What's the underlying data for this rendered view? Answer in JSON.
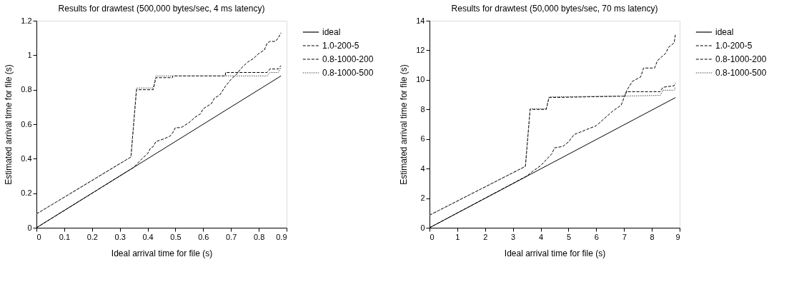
{
  "chart_data": [
    {
      "type": "line",
      "title": "Results for drawtest (500,000 bytes/sec, 4 ms latency)",
      "xlabel": "Ideal arrival time for file (s)",
      "ylabel": "Estimated arrival time for file (s)",
      "xlim": [
        0,
        0.9
      ],
      "ylim": [
        0,
        1.2
      ],
      "xticks": [
        0,
        0.1,
        0.2,
        0.3,
        0.4,
        0.5,
        0.6,
        0.7,
        0.8,
        0.9
      ],
      "yticks": [
        0,
        0.2,
        0.4,
        0.6,
        0.8,
        1,
        1.2
      ],
      "grid": false,
      "legend": "right",
      "marker": "none",
      "series": [
        {
          "name": "ideal",
          "color": "#000000",
          "line_style": "solid",
          "x": [
            0,
            0.88
          ],
          "values": [
            0,
            0.88
          ]
        },
        {
          "name": "1.0-200-5",
          "color": "#000000",
          "line_style": "dashed",
          "x": [
            0,
            0.35,
            0.38,
            0.4,
            0.41,
            0.42,
            0.43,
            0.45,
            0.48,
            0.49,
            0.5,
            0.52,
            0.55,
            0.57,
            0.59,
            0.6,
            0.63,
            0.64,
            0.66,
            0.68,
            0.7,
            0.72,
            0.74,
            0.76,
            0.78,
            0.8,
            0.82,
            0.83,
            0.84,
            0.86,
            0.87,
            0.88
          ],
          "values": [
            0,
            0.35,
            0.4,
            0.43,
            0.46,
            0.47,
            0.5,
            0.51,
            0.53,
            0.55,
            0.58,
            0.58,
            0.61,
            0.64,
            0.66,
            0.69,
            0.72,
            0.75,
            0.77,
            0.82,
            0.86,
            0.89,
            0.93,
            0.96,
            0.98,
            1.01,
            1.03,
            1.07,
            1.08,
            1.08,
            1.1,
            1.13
          ]
        },
        {
          "name": "0.8-1000-200",
          "color": "#000000",
          "line_style": "dashed",
          "x": [
            0,
            0.34,
            0.36,
            0.42,
            0.43,
            0.49,
            0.49,
            0.68,
            0.68,
            0.83,
            0.84,
            0.87,
            0.88
          ],
          "values": [
            0.08,
            0.41,
            0.8,
            0.8,
            0.87,
            0.87,
            0.88,
            0.88,
            0.9,
            0.9,
            0.92,
            0.92,
            0.94
          ]
        },
        {
          "name": "0.8-1000-500",
          "color": "#444444",
          "line_style": "dotted",
          "x": [
            0,
            0.34,
            0.36,
            0.42,
            0.43,
            0.83,
            0.84,
            0.87,
            0.88
          ],
          "values": [
            0.08,
            0.41,
            0.81,
            0.81,
            0.88,
            0.88,
            0.9,
            0.9,
            0.93
          ]
        }
      ]
    },
    {
      "type": "line",
      "title": "Results for drawtest (50,000 bytes/sec, 70 ms latency)",
      "xlabel": "Ideal arrival time for file (s)",
      "ylabel": "Estimated arrival time for file (s)",
      "xlim": [
        0,
        9
      ],
      "ylim": [
        0,
        14
      ],
      "xticks": [
        0,
        1,
        2,
        3,
        4,
        5,
        6,
        7,
        8,
        9
      ],
      "yticks": [
        0,
        2,
        4,
        6,
        8,
        10,
        12,
        14
      ],
      "grid": false,
      "legend": "right",
      "marker": "none",
      "series": [
        {
          "name": "ideal",
          "color": "#000000",
          "line_style": "solid",
          "x": [
            0,
            8.85
          ],
          "values": [
            0,
            8.8
          ]
        },
        {
          "name": "1.0-200-5",
          "color": "#000000",
          "line_style": "dashed",
          "x": [
            0,
            3.5,
            3.7,
            4.0,
            4.1,
            4.3,
            4.4,
            4.5,
            4.8,
            5.0,
            5.2,
            5.6,
            6.0,
            6.3,
            6.6,
            6.9,
            7.0,
            7.1,
            7.3,
            7.6,
            7.7,
            8.1,
            8.2,
            8.5,
            8.6,
            8.8,
            8.85
          ],
          "values": [
            0,
            3.5,
            3.8,
            4.2,
            4.4,
            4.8,
            5.0,
            5.4,
            5.5,
            5.8,
            6.3,
            6.6,
            6.9,
            7.4,
            7.9,
            8.3,
            8.8,
            9.3,
            9.9,
            10.2,
            10.8,
            10.8,
            11.3,
            11.8,
            12.2,
            12.5,
            13.1
          ]
        },
        {
          "name": "0.8-1000-200",
          "color": "#000000",
          "line_style": "dashed",
          "x": [
            0,
            3.45,
            3.62,
            4.2,
            4.3,
            7.0,
            7.1,
            8.3,
            8.4,
            8.8,
            8.85
          ],
          "values": [
            0.85,
            4.15,
            8.0,
            8.0,
            8.8,
            8.9,
            9.2,
            9.2,
            9.5,
            9.6,
            9.8
          ]
        },
        {
          "name": "0.8-1000-500",
          "color": "#444444",
          "line_style": "dotted",
          "x": [
            0,
            3.45,
            3.62,
            4.2,
            4.3,
            6.9,
            8.3,
            8.4,
            8.8,
            8.85
          ],
          "values": [
            0.85,
            4.15,
            8.05,
            8.05,
            8.85,
            8.9,
            8.95,
            9.3,
            9.3,
            9.5
          ]
        }
      ]
    }
  ]
}
